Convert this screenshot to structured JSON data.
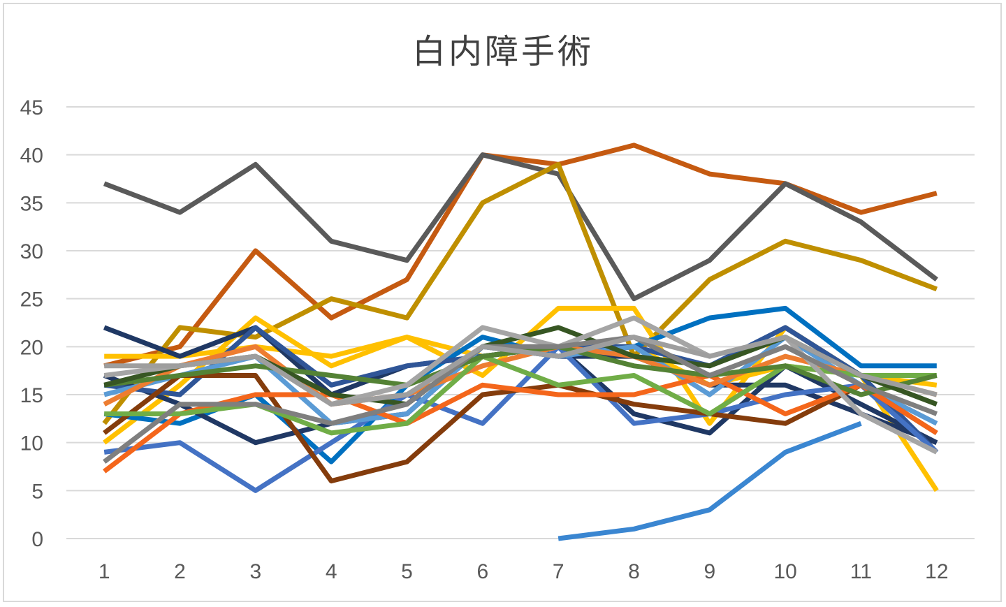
{
  "chart_data": {
    "type": "line",
    "title": "白内障手術",
    "xlabel": "",
    "ylabel": "",
    "categories": [
      "1",
      "2",
      "3",
      "4",
      "5",
      "6",
      "7",
      "8",
      "9",
      "10",
      "11",
      "12"
    ],
    "ylim": [
      0,
      45
    ],
    "yticks": [
      0,
      5,
      10,
      15,
      20,
      25,
      30,
      35,
      40,
      45
    ],
    "grid": true,
    "legend": "none",
    "series": [
      {
        "color": "#c55a11",
        "values": [
          18,
          20,
          30,
          23,
          27,
          40,
          39,
          41,
          38,
          37,
          34,
          36
        ]
      },
      {
        "color": "#5a5a5a",
        "values": [
          37,
          34,
          39,
          31,
          29,
          40,
          38,
          25,
          29,
          37,
          33,
          27
        ]
      },
      {
        "color": "#bf8f00",
        "values": [
          12,
          22,
          21,
          25,
          23,
          35,
          39,
          19,
          27,
          31,
          29,
          26
        ]
      },
      {
        "color": "#ffc000",
        "values": [
          10,
          16,
          23,
          18,
          21,
          17,
          24,
          24,
          12,
          22,
          17,
          5
        ]
      },
      {
        "color": "#ffc000",
        "values": [
          19,
          19,
          20,
          19,
          21,
          19,
          20,
          20,
          16,
          18,
          17,
          16
        ]
      },
      {
        "color": "#0070c0",
        "values": [
          13,
          12,
          15,
          8,
          16,
          21,
          19,
          20,
          23,
          24,
          18,
          18
        ]
      },
      {
        "color": "#1f3864",
        "values": [
          22,
          19,
          22,
          15,
          18,
          19,
          20,
          13,
          11,
          18,
          14,
          10
        ]
      },
      {
        "color": "#203864",
        "values": [
          17,
          14,
          10,
          12,
          13,
          20,
          19,
          19,
          16,
          16,
          13,
          10
        ]
      },
      {
        "color": "#2f5597",
        "values": [
          16,
          15,
          22,
          16,
          18,
          19,
          20,
          20,
          18,
          22,
          17,
          9
        ]
      },
      {
        "color": "#4472c4",
        "values": [
          9,
          10,
          5,
          10,
          15,
          12,
          20,
          12,
          13,
          15,
          16,
          9
        ]
      },
      {
        "color": "#5b9bd5",
        "values": [
          15,
          17,
          19,
          12,
          13,
          20,
          19,
          20,
          15,
          21,
          16,
          12
        ]
      },
      {
        "color": "#3a86d1",
        "values": [
          null,
          null,
          null,
          null,
          null,
          null,
          0,
          1,
          3,
          9,
          12,
          null
        ]
      },
      {
        "color": "#843c0c",
        "values": [
          11,
          17,
          17,
          6,
          8,
          15,
          16,
          14,
          13,
          12,
          16,
          11
        ]
      },
      {
        "color": "#f4661b",
        "values": [
          7,
          13,
          15,
          15,
          12,
          16,
          15,
          15,
          17,
          13,
          16,
          11
        ]
      },
      {
        "color": "#ed7d31",
        "values": [
          14,
          18,
          20,
          14,
          15,
          18,
          20,
          19,
          16,
          19,
          17,
          15
        ]
      },
      {
        "color": "#70ad47",
        "values": [
          13,
          13,
          14,
          11,
          12,
          19,
          16,
          17,
          13,
          18,
          17,
          17
        ]
      },
      {
        "color": "#548235",
        "values": [
          16,
          17,
          18,
          17,
          16,
          19,
          20,
          18,
          17,
          18,
          15,
          17
        ]
      },
      {
        "color": "#375623",
        "values": [
          16,
          18,
          19,
          15,
          14,
          20,
          22,
          19,
          18,
          21,
          17,
          14
        ]
      },
      {
        "color": "#a5a5a5",
        "values": [
          17,
          18,
          19,
          14,
          16,
          22,
          20,
          23,
          19,
          21,
          13,
          9
        ]
      },
      {
        "color": "#7f7f7f",
        "values": [
          8,
          14,
          14,
          12,
          14,
          20,
          20,
          21,
          17,
          20,
          16,
          13
        ]
      },
      {
        "color": "#9e9e9e",
        "values": [
          18,
          18,
          19,
          14,
          15,
          20,
          19,
          21,
          19,
          21,
          17,
          15
        ]
      }
    ]
  }
}
